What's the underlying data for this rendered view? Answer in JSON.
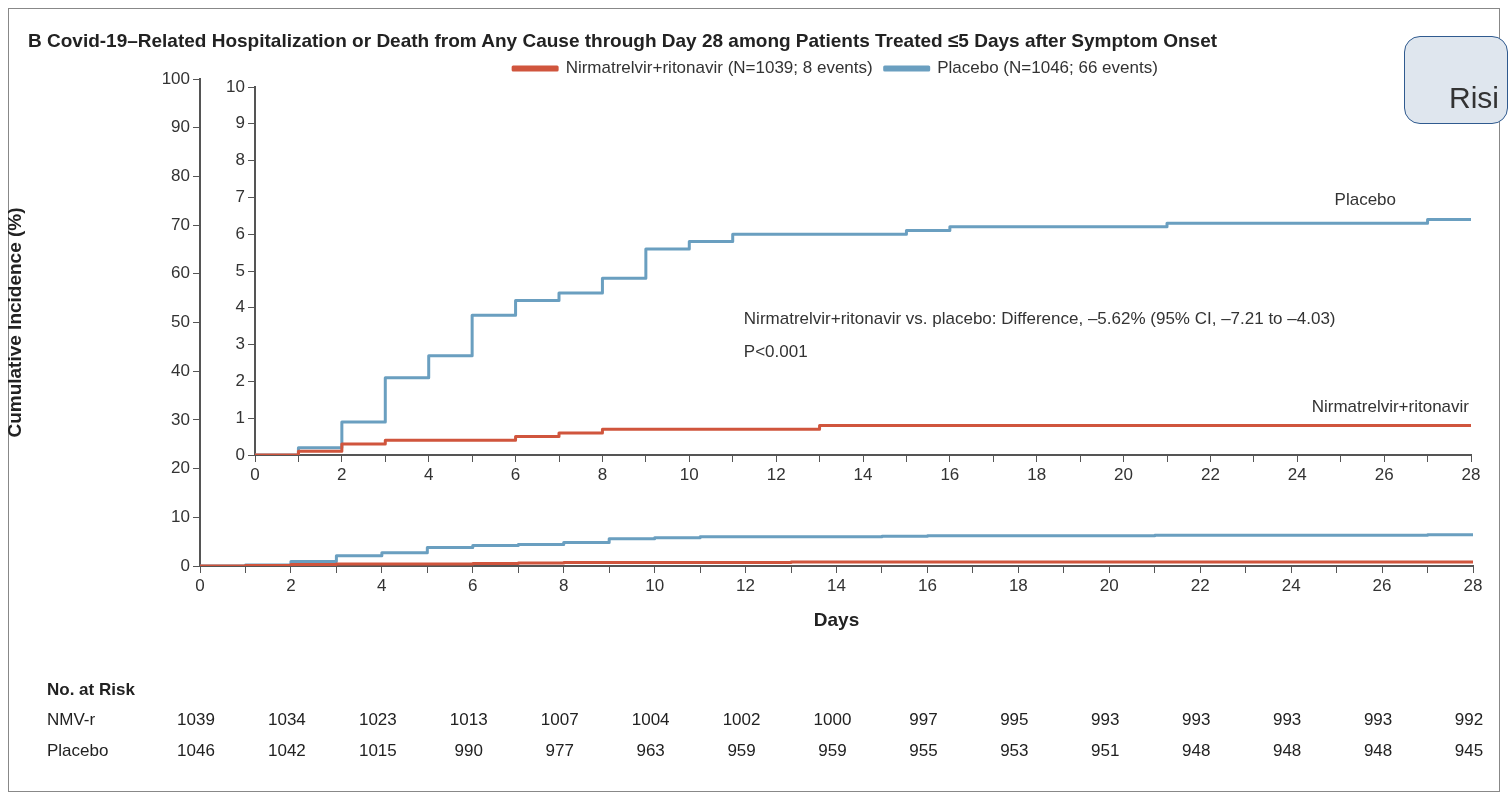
{
  "chart_data": [
    {
      "type": "step",
      "title": "B  Covid-19–Related Hospitalization or Death from Any Cause through Day 28 among Patients Treated ≤5 Days after Symptom Onset",
      "xlabel": "Days",
      "ylabel": "Cumulative Incidence (%)",
      "series": [
        {
          "color": "#d0553d",
          "x": [
            0,
            1,
            2,
            3,
            6,
            7,
            8,
            13,
            28
          ],
          "values": [
            0,
            0.1,
            0.3,
            0.4,
            0.5,
            0.6,
            0.7,
            0.8,
            0.8
          ]
        },
        {
          "color": "#6a9fc0",
          "x": [
            0,
            1,
            2,
            3,
            4,
            5,
            6,
            7,
            8,
            9,
            10,
            11,
            15,
            16,
            21,
            27,
            28
          ],
          "values": [
            0,
            0.2,
            0.9,
            2.1,
            2.7,
            3.8,
            4.2,
            4.4,
            4.8,
            5.6,
            5.8,
            6.0,
            6.1,
            6.2,
            6.3,
            6.4,
            6.4
          ]
        }
      ],
      "xlim": [
        0,
        28
      ],
      "xticks": [
        0,
        {
          "value": 1,
          "label": null
        },
        2,
        {
          "value": 3,
          "label": null
        },
        4,
        {
          "value": 5,
          "label": null
        },
        6,
        {
          "value": 7,
          "label": null
        },
        8,
        {
          "value": 9,
          "label": null
        },
        10,
        {
          "value": 11,
          "label": null
        },
        12,
        {
          "value": 13,
          "label": null
        },
        14,
        {
          "value": 15,
          "label": null
        },
        16,
        {
          "value": 17,
          "label": null
        },
        18,
        {
          "value": 19,
          "label": null
        },
        20,
        {
          "value": 21,
          "label": null
        },
        22,
        {
          "value": 23,
          "label": null
        },
        24,
        {
          "value": 25,
          "label": null
        },
        26,
        {
          "value": 27,
          "label": null
        },
        28
      ],
      "ylim": [
        0,
        100
      ],
      "yticks": [
        0,
        10,
        20,
        30,
        40,
        50,
        60,
        70,
        80,
        90,
        100
      ],
      "annotations": [
        "No. at Risk",
        "NMV-r",
        "1039",
        "1034",
        "1023",
        "1013",
        "1007",
        "1004",
        "1002",
        "1000",
        "997",
        "995",
        "993",
        "993",
        "993",
        "993",
        "992",
        "Placebo",
        "1046",
        "1042",
        "1015",
        "990",
        "977",
        "963",
        "959",
        "959",
        "955",
        "953",
        "951",
        "948",
        "948",
        "948",
        "945"
      ]
    },
    {
      "type": "step",
      "legend": "top",
      "series": [
        {
          "name": "Nirmatrelvir+ritonavir (N=1039; 8 events)",
          "color": "#d0553d",
          "x": [
            0,
            1,
            2,
            3,
            6,
            7,
            8,
            13,
            28
          ],
          "values": [
            0,
            0.1,
            0.3,
            0.4,
            0.5,
            0.6,
            0.7,
            0.8,
            0.8
          ]
        },
        {
          "name": "Placebo (N=1046; 66 events)",
          "color": "#6a9fc0",
          "x": [
            0,
            1,
            2,
            3,
            4,
            5,
            6,
            7,
            8,
            9,
            10,
            11,
            15,
            16,
            21,
            27,
            28
          ],
          "values": [
            0,
            0.2,
            0.9,
            2.1,
            2.7,
            3.8,
            4.2,
            4.4,
            4.8,
            5.6,
            5.8,
            6.0,
            6.1,
            6.2,
            6.3,
            6.4,
            6.4
          ]
        }
      ],
      "xlim": [
        0,
        28
      ],
      "xticks": [
        0,
        {
          "value": 1,
          "label": null
        },
        2,
        {
          "value": 3,
          "label": null
        },
        4,
        {
          "value": 5,
          "label": null
        },
        6,
        {
          "value": 7,
          "label": null
        },
        8,
        {
          "value": 9,
          "label": null
        },
        10,
        {
          "value": 11,
          "label": null
        },
        12,
        {
          "value": 13,
          "label": null
        },
        14,
        {
          "value": 15,
          "label": null
        },
        16,
        {
          "value": 17,
          "label": null
        },
        18,
        {
          "value": 19,
          "label": null
        },
        20,
        {
          "value": 21,
          "label": null
        },
        22,
        {
          "value": 23,
          "label": null
        },
        24,
        {
          "value": 25,
          "label": null
        },
        26,
        {
          "value": 27,
          "label": null
        },
        28
      ],
      "ylim": [
        0,
        10
      ],
      "yticks": [
        0,
        1,
        2,
        3,
        4,
        5,
        6,
        7,
        8,
        9,
        10
      ],
      "annotations": [
        "Nirmatrelvir+ritonavir vs. placebo: Difference, –5.62% (95% CI, –7.21 to –4.03)",
        "P<0.001",
        "Placebo",
        "Nirmatrelvir+ritonavir",
        "Risi"
      ]
    }
  ]
}
